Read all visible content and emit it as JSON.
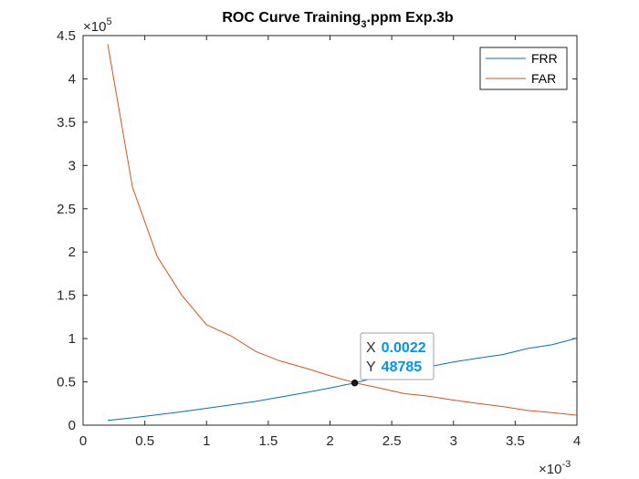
{
  "chart_data": {
    "type": "line",
    "title": "ROC Curve Training",
    "title_subscript": "3",
    "title_suffix": ".ppm Exp.3b",
    "xlabel": "",
    "ylabel": "",
    "xlim": [
      0,
      0.004
    ],
    "ylim": [
      0,
      450000
    ],
    "x_multiplier_label": "×10",
    "x_multiplier_exp": "-3",
    "y_multiplier_label": "×10",
    "y_multiplier_exp": "5",
    "x_tick_values": [
      0,
      0.0005,
      0.001,
      0.0015,
      0.002,
      0.0025,
      0.003,
      0.0035,
      0.004
    ],
    "x_tick_labels": [
      "0",
      "0.5",
      "1",
      "1.5",
      "2",
      "2.5",
      "3",
      "3.5",
      "4"
    ],
    "y_tick_values": [
      0,
      50000,
      100000,
      150000,
      200000,
      250000,
      300000,
      350000,
      400000,
      450000
    ],
    "y_tick_labels": [
      "0",
      "0.5",
      "1",
      "1.5",
      "2",
      "2.5",
      "3",
      "3.5",
      "4",
      "4.5"
    ],
    "grid": false,
    "legend_position": "top-right",
    "series": [
      {
        "name": "FRR",
        "color": "#0072bd",
        "x": [
          0.0002,
          0.0004,
          0.0006,
          0.0008,
          0.001,
          0.0012,
          0.0014,
          0.0016,
          0.0018,
          0.002,
          0.0022,
          0.0024,
          0.0026,
          0.0028,
          0.003,
          0.0032,
          0.0034,
          0.0036,
          0.0038,
          0.004
        ],
        "y": [
          5500,
          8500,
          12000,
          15500,
          19500,
          23500,
          27500,
          32500,
          37500,
          43000,
          48785,
          56000,
          62000,
          67500,
          73000,
          77500,
          81500,
          88500,
          93000,
          100500
        ]
      },
      {
        "name": "FAR",
        "color": "#d95319",
        "x": [
          0.0002,
          0.0004,
          0.0006,
          0.0008,
          0.001,
          0.0012,
          0.0014,
          0.0016,
          0.0018,
          0.002,
          0.0022,
          0.0024,
          0.0026,
          0.0028,
          0.003,
          0.0032,
          0.0034,
          0.0036,
          0.0038,
          0.004
        ],
        "y": [
          440000,
          275000,
          195000,
          150000,
          116000,
          103000,
          85000,
          74000,
          66000,
          57000,
          49000,
          43000,
          36500,
          33500,
          29000,
          25000,
          21500,
          17000,
          14500,
          11500
        ]
      }
    ],
    "datatip": {
      "x_label": "X",
      "y_label": "Y",
      "x_value": "0.0022",
      "y_value": "48785",
      "x": 0.0022,
      "y": 48785
    }
  }
}
